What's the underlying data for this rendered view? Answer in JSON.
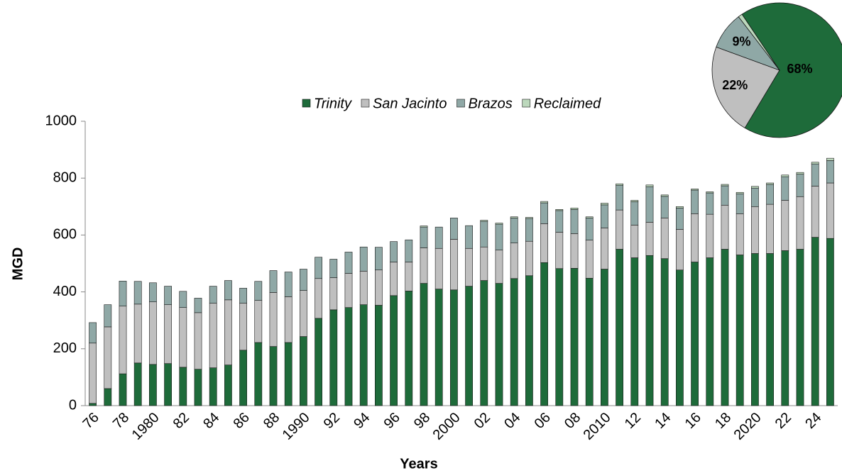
{
  "chart_data": [
    {
      "type": "stacked_bar",
      "xlabel": "Years",
      "ylabel": "MGD",
      "categories": [
        "76",
        null,
        "78",
        null,
        "1980",
        null,
        "82",
        null,
        "84",
        null,
        "86",
        null,
        "88",
        null,
        "1990",
        null,
        "92",
        null,
        "94",
        null,
        "96",
        null,
        "98",
        null,
        "2000",
        null,
        "02",
        null,
        "04",
        null,
        "06",
        null,
        "08",
        null,
        "2010",
        null,
        "12",
        null,
        "14",
        null,
        "16",
        null,
        "18",
        null,
        "2020",
        null,
        "22",
        null,
        "24",
        null
      ],
      "series": [
        {
          "name": "Trinity",
          "color": "#1e6b3a",
          "values": [
            8,
            60,
            112,
            150,
            145,
            148,
            135,
            128,
            133,
            143,
            195,
            222,
            208,
            222,
            243,
            307,
            337,
            345,
            355,
            353,
            387,
            403,
            430,
            410,
            407,
            420,
            440,
            430,
            447,
            457,
            503,
            482,
            483,
            448,
            480,
            550,
            520,
            528,
            517,
            477,
            505,
            520,
            550,
            530,
            535,
            535,
            545,
            550,
            592,
            588
          ]
        },
        {
          "name": "San Jacinto",
          "color": "#bfbfbf",
          "values": [
            212,
            217,
            238,
            207,
            220,
            207,
            210,
            199,
            227,
            229,
            165,
            148,
            190,
            161,
            162,
            140,
            113,
            120,
            118,
            124,
            118,
            102,
            125,
            143,
            178,
            133,
            118,
            117,
            125,
            121,
            137,
            128,
            122,
            134,
            145,
            138,
            115,
            117,
            143,
            143,
            170,
            153,
            155,
            145,
            165,
            173,
            177,
            185,
            180,
            195
          ]
        },
        {
          "name": "Brazos",
          "color": "#8fa8a6",
          "values": [
            72,
            78,
            88,
            80,
            67,
            65,
            57,
            51,
            60,
            68,
            53,
            67,
            77,
            87,
            75,
            75,
            65,
            75,
            85,
            80,
            72,
            78,
            73,
            75,
            75,
            80,
            90,
            91,
            88,
            80,
            73,
            76,
            85,
            78,
            81,
            87,
            82,
            125,
            76,
            75,
            83,
            75,
            68,
            70,
            65,
            70,
            83,
            79,
            78,
            79
          ]
        },
        {
          "name": "Reclaimed",
          "color": "#bcd8bc",
          "values": [
            0,
            0,
            0,
            0,
            0,
            0,
            0,
            0,
            0,
            0,
            0,
            0,
            0,
            0,
            0,
            0,
            0,
            0,
            0,
            0,
            0,
            0,
            4,
            0,
            0,
            0,
            4,
            4,
            4,
            4,
            5,
            4,
            5,
            4,
            6,
            5,
            5,
            6,
            5,
            5,
            4,
            4,
            5,
            5,
            6,
            5,
            6,
            6,
            6,
            8
          ]
        }
      ],
      "ylim": [
        0,
        1000
      ],
      "yticks": [
        0,
        200,
        400,
        600,
        800,
        1000
      ],
      "legend": "top"
    },
    {
      "type": "pie",
      "values": [
        68,
        22,
        9,
        1
      ],
      "value_labels": [
        "68%",
        "22%",
        "9%",
        null
      ],
      "colors": [
        "#1e6b3a",
        "#bfbfbf",
        "#8fa8a6",
        "#bcd8bc"
      ],
      "label_colors": [
        "#ffffff",
        "#000000",
        "#000000",
        "#000000"
      ]
    }
  ]
}
